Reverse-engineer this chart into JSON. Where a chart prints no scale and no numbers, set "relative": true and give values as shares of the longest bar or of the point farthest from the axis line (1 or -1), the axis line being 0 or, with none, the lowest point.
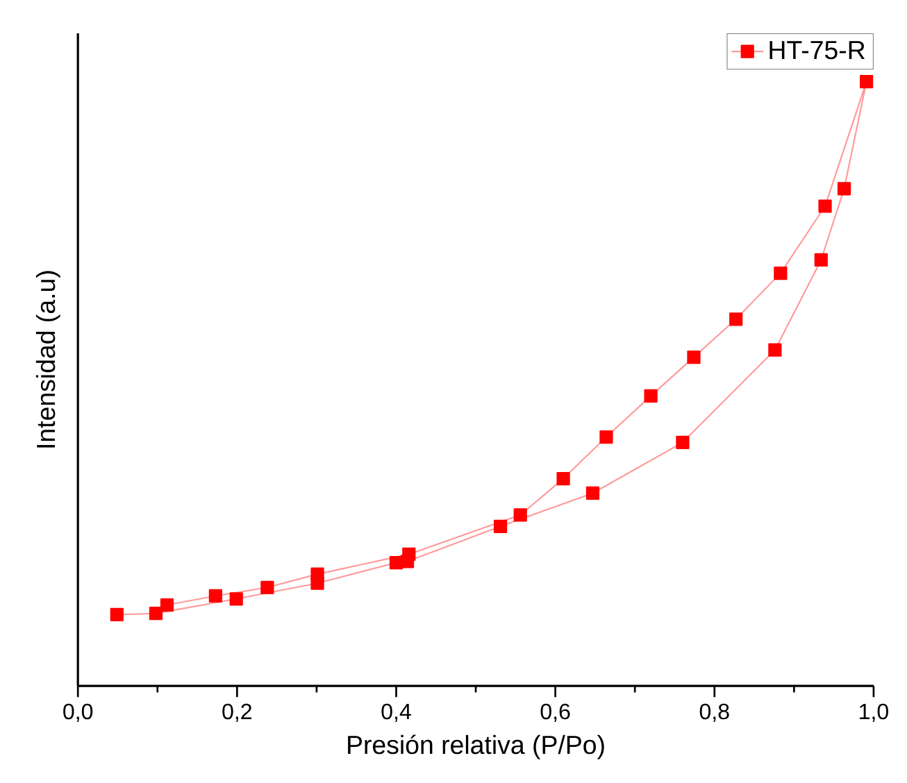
{
  "chart_data": {
    "type": "line",
    "xlabel": "Presión relativa (P/Po)",
    "ylabel": "Intensidad (a.u)",
    "relative": true,
    "xlim": [
      0,
      1
    ],
    "xticks": [
      {
        "value": 0,
        "label": "0,0"
      },
      {
        "value": 0.2,
        "label": "0,2"
      },
      {
        "value": 0.4,
        "label": "0,4"
      },
      {
        "value": 0.6,
        "label": "0,6"
      },
      {
        "value": 0.8,
        "label": "0,8"
      },
      {
        "value": 1,
        "label": "1,0"
      }
    ],
    "legend": "top right",
    "marker": "square",
    "line_style": "solid",
    "series": [
      {
        "name": "HT-75-R",
        "color": "#ff0000",
        "x": [
          0.049,
          0.098,
          0.199,
          0.301,
          0.4,
          0.414,
          0.531,
          0.647,
          0.76,
          0.876,
          0.934,
          0.963,
          0.991,
          0.939,
          0.883,
          0.827,
          0.774,
          0.72,
          0.664,
          0.61,
          0.556,
          0.416,
          0.301,
          0.238,
          0.173,
          0.112
        ],
        "values": [
          0.118,
          0.12,
          0.144,
          0.17,
          0.204,
          0.206,
          0.264,
          0.319,
          0.403,
          0.556,
          0.705,
          0.823,
          1,
          0.794,
          0.683,
          0.607,
          0.544,
          0.48,
          0.412,
          0.343,
          0.283,
          0.218,
          0.185,
          0.163,
          0.149,
          0.134
        ]
      }
    ]
  }
}
